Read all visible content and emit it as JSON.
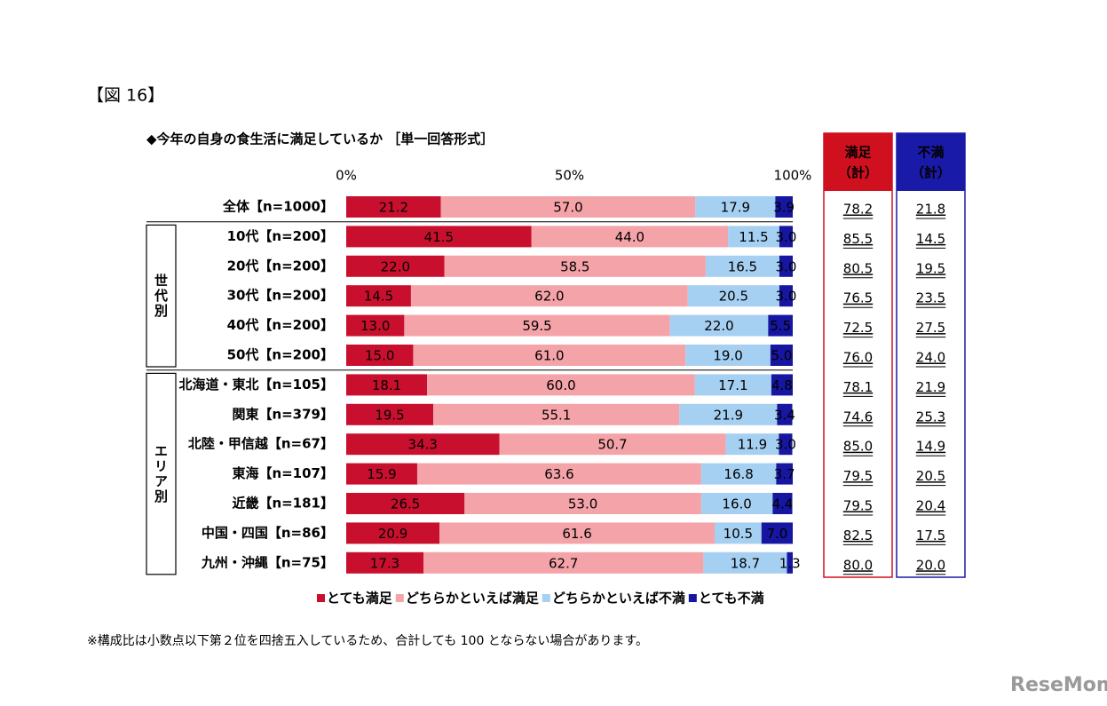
{
  "figure_label": "【図 16】",
  "watermark": "ReseMom",
  "note": "※構成比は小数点以下第２位を四捨五入しているため、合計しても 100 とならない場合があります。",
  "chart_data": {
    "type": "stacked_bar_h",
    "title": "◆今年の自身の食生活に満足しているか ［単一回答形式］",
    "categories": [
      "全体【n=1000】",
      "10代【n=200】",
      "20代【n=200】",
      "30代【n=200】",
      "40代【n=200】",
      "50代【n=200】",
      "北海道・東北【n=105】",
      "関東【n=379】",
      "北陸・甲信越【n=67】",
      "東海【n=107】",
      "近畿【n=181】",
      "中国・四国【n=86】",
      "九州・沖縄【n=75】"
    ],
    "xlim": [
      0,
      100
    ],
    "xticks": [
      {
        "value": 0,
        "label": "0%"
      },
      {
        "value": 50,
        "label": "50%"
      },
      {
        "value": 100,
        "label": "100%"
      }
    ],
    "series": [
      {
        "name": "とても満足",
        "color": "#c8102e",
        "label_color": "#ffffff",
        "values": [
          21.2,
          41.5,
          22.0,
          14.5,
          13.0,
          15.0,
          18.1,
          19.5,
          34.3,
          15.9,
          26.5,
          20.9,
          17.3
        ],
        "value_labels": [
          "21.2",
          "41.5",
          "22.0",
          "14.5",
          "13.0",
          "15.0",
          "18.1",
          "19.5",
          "34.3",
          "15.9",
          "26.5",
          "20.9",
          "17.3"
        ]
      },
      {
        "name": "どちらかといえば満足",
        "color": "#f4a3a8",
        "label_color": "#000000",
        "values": [
          57.0,
          44.0,
          58.5,
          62.0,
          59.5,
          61.0,
          60.0,
          55.1,
          50.7,
          63.6,
          53.0,
          61.6,
          62.7
        ],
        "value_labels": [
          "57.0",
          "44.0",
          "58.5",
          "62.0",
          "59.5",
          "61.0",
          "60.0",
          "55.1",
          "50.7",
          "63.6",
          "53.0",
          "61.6",
          "62.7"
        ]
      },
      {
        "name": "どちらかといえば不満",
        "color": "#a6d0f2",
        "label_color": "#000000",
        "values": [
          17.9,
          11.5,
          16.5,
          20.5,
          22.0,
          19.0,
          17.1,
          21.9,
          11.9,
          16.8,
          16.0,
          10.5,
          18.7
        ],
        "value_labels": [
          "17.9",
          "11.5",
          "16.5",
          "20.5",
          "22.0",
          "19.0",
          "17.1",
          "21.9",
          "11.9",
          "16.8",
          "16.0",
          "10.5",
          "18.7"
        ]
      },
      {
        "name": "とても不満",
        "color": "#1616a0",
        "label_color": "#ffffff",
        "values": [
          3.9,
          3.0,
          3.0,
          3.0,
          5.5,
          5.0,
          4.8,
          3.4,
          3.0,
          3.7,
          4.4,
          7.0,
          1.3
        ],
        "value_labels": [
          "3.9",
          "3.0",
          "3.0",
          "3.0",
          "5.5",
          "5.0",
          "4.8",
          "3.4",
          "3.0",
          "3.7",
          "4.4",
          "7.0",
          "1.3"
        ]
      }
    ],
    "groups": [
      {
        "label": "世代別",
        "rows": [
          1,
          2,
          3,
          4,
          5
        ]
      },
      {
        "label": "エリア別",
        "rows": [
          6,
          7,
          8,
          9,
          10,
          11,
          12
        ]
      }
    ],
    "totals": [
      {
        "title_lines": [
          "満足",
          "（計）"
        ],
        "color": "#d0101e",
        "values": [
          78.2,
          85.5,
          80.5,
          76.5,
          72.5,
          76.0,
          78.1,
          74.6,
          85.0,
          79.5,
          79.5,
          82.5,
          80.0
        ],
        "value_labels": [
          "78.2",
          "85.5",
          "80.5",
          "76.5",
          "72.5",
          "76.0",
          "78.1",
          "74.6",
          "85.0",
          "79.5",
          "79.5",
          "82.5",
          "80.0"
        ]
      },
      {
        "title_lines": [
          "不満",
          "（計）"
        ],
        "color": "#1a1aa8",
        "values": [
          21.8,
          14.5,
          19.5,
          23.5,
          27.5,
          24.0,
          21.9,
          25.3,
          14.9,
          20.5,
          20.4,
          17.5,
          20.0
        ],
        "value_labels": [
          "21.8",
          "14.5",
          "19.5",
          "23.5",
          "27.5",
          "24.0",
          "21.9",
          "25.3",
          "14.9",
          "20.5",
          "20.4",
          "17.5",
          "20.0"
        ]
      }
    ]
  }
}
